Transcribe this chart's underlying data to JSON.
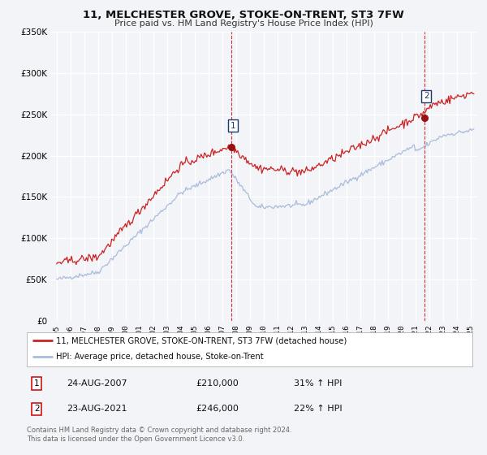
{
  "title": "11, MELCHESTER GROVE, STOKE-ON-TRENT, ST3 7FW",
  "subtitle": "Price paid vs. HM Land Registry's House Price Index (HPI)",
  "bg_color": "#f2f4f8",
  "plot_bg_color": "#f2f4f8",
  "grid_color": "#dddddd",
  "red_color": "#cc2222",
  "blue_color": "#aabbdd",
  "ylim": [
    0,
    350000
  ],
  "yticks": [
    0,
    50000,
    100000,
    150000,
    200000,
    250000,
    300000,
    350000
  ],
  "ytick_labels": [
    "£0",
    "£50K",
    "£100K",
    "£150K",
    "£200K",
    "£250K",
    "£300K",
    "£350K"
  ],
  "xlim_start": 1994.6,
  "xlim_end": 2025.5,
  "xtick_years": [
    1995,
    1996,
    1997,
    1998,
    1999,
    2000,
    2001,
    2002,
    2003,
    2004,
    2005,
    2006,
    2007,
    2008,
    2009,
    2010,
    2011,
    2012,
    2013,
    2014,
    2015,
    2016,
    2017,
    2018,
    2019,
    2020,
    2021,
    2022,
    2023,
    2024,
    2025
  ],
  "sale1_x": 2007.646,
  "sale1_y": 210000,
  "sale1_label": "1",
  "sale2_x": 2021.646,
  "sale2_y": 246000,
  "sale2_label": "2",
  "legend_line1": "11, MELCHESTER GROVE, STOKE-ON-TRENT, ST3 7FW (detached house)",
  "legend_line2": "HPI: Average price, detached house, Stoke-on-Trent",
  "table_row1_num": "1",
  "table_row1_date": "24-AUG-2007",
  "table_row1_price": "£210,000",
  "table_row1_hpi": "31% ↑ HPI",
  "table_row2_num": "2",
  "table_row2_date": "23-AUG-2021",
  "table_row2_price": "£246,000",
  "table_row2_hpi": "22% ↑ HPI",
  "footer": "Contains HM Land Registry data © Crown copyright and database right 2024.\nThis data is licensed under the Open Government Licence v3.0."
}
